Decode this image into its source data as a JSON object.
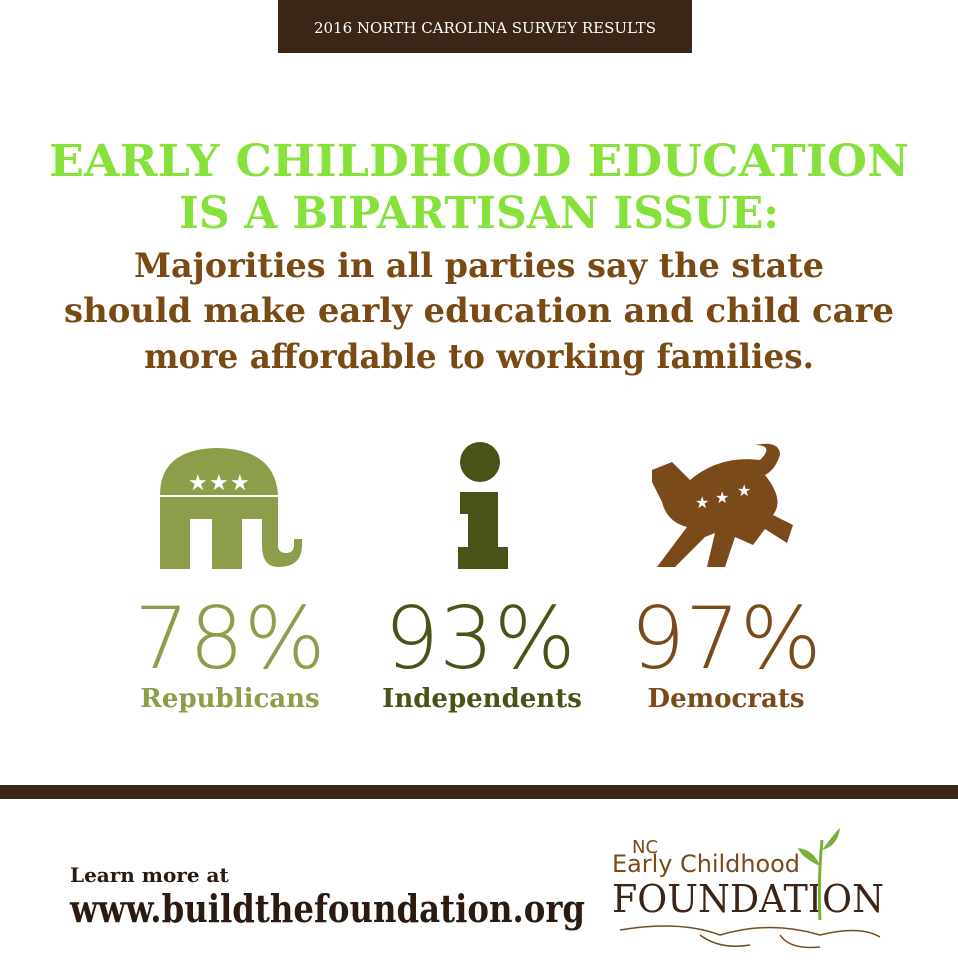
{
  "banner": "2016 NORTH CAROLINA SURVEY RESULTS",
  "headline": [
    "EARLY CHILDHOOD EDUCATION",
    "IS A BIPARTISAN ISSUE:"
  ],
  "subheadline": [
    "Majorities in all parties say the state",
    "should make early education and child care",
    "more affordable to working families."
  ],
  "stats": [
    {
      "percent": "78%",
      "label": "Republicans"
    },
    {
      "percent": "93%",
      "label": "Independents"
    },
    {
      "percent": "97%",
      "label": "Democrats"
    }
  ],
  "footer": {
    "lead": "Learn more at",
    "url": "www.buildthefoundation.org"
  },
  "logo": {
    "state": "NC",
    "line1": "Early Childhood",
    "line2": "FOUNDATION"
  }
}
